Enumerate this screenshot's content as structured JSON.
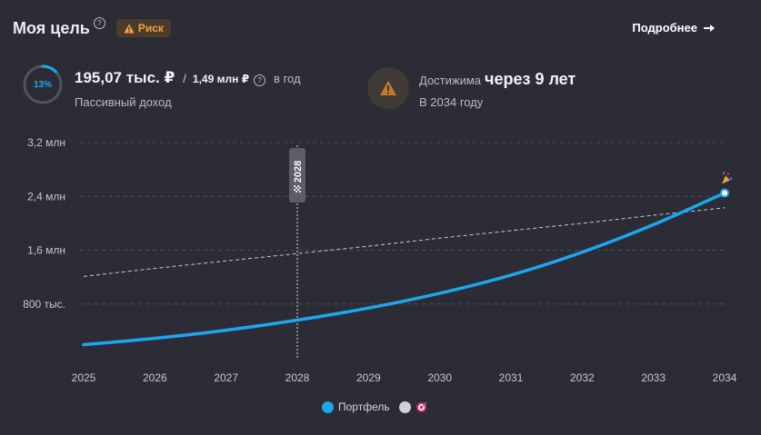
{
  "header": {
    "title": "Моя цель",
    "risk_badge": "Риск",
    "details_link": "Подробнее"
  },
  "income": {
    "progress_label": "13%",
    "progress_fraction": 0.13,
    "current": "195,07 тыс. ₽",
    "separator": "/",
    "target": "1,49 млн ₽",
    "period": "в год",
    "caption": "Пассивный доход"
  },
  "reach": {
    "label": "Достижима",
    "value": "через 9 лет",
    "caption": "В 2034 году"
  },
  "colors": {
    "background": "#2b2c35",
    "portfolio": "#1ba6ee",
    "risk": "#f5a142",
    "goal_dot": "#d0d0d5"
  },
  "chart_data": {
    "type": "line",
    "x": [
      2025,
      2026,
      2027,
      2028,
      2029,
      2030,
      2031,
      2032,
      2033,
      2034
    ],
    "x_tick_labels": [
      "2025",
      "2026",
      "2027",
      "2028",
      "2029",
      "2030",
      "2031",
      "2032",
      "2033",
      "2034"
    ],
    "y_ticks": [
      800000,
      1600000,
      2400000,
      3200000
    ],
    "y_tick_labels": [
      "800 тыс.",
      "1,6 млн",
      "2,4 млн",
      "3,2 млн"
    ],
    "ylim": [
      0,
      3200000
    ],
    "grid": true,
    "marker_year": 2028,
    "marker_label": "2028",
    "series": [
      {
        "name": "Портфель",
        "style": "solid",
        "values": [
          195000,
          290000,
          410000,
          560000,
          740000,
          960000,
          1230000,
          1570000,
          1980000,
          2450000
        ]
      },
      {
        "name": "",
        "style": "dashed",
        "values": [
          1210000,
          1330000,
          1440000,
          1550000,
          1660000,
          1780000,
          1890000,
          2000000,
          2120000,
          2230000
        ]
      }
    ]
  },
  "legend": [
    {
      "label": "Портфель",
      "color": "#1ba6ee"
    },
    {
      "label": "",
      "color": "#d0d0d5",
      "icon": "target-icon"
    }
  ]
}
